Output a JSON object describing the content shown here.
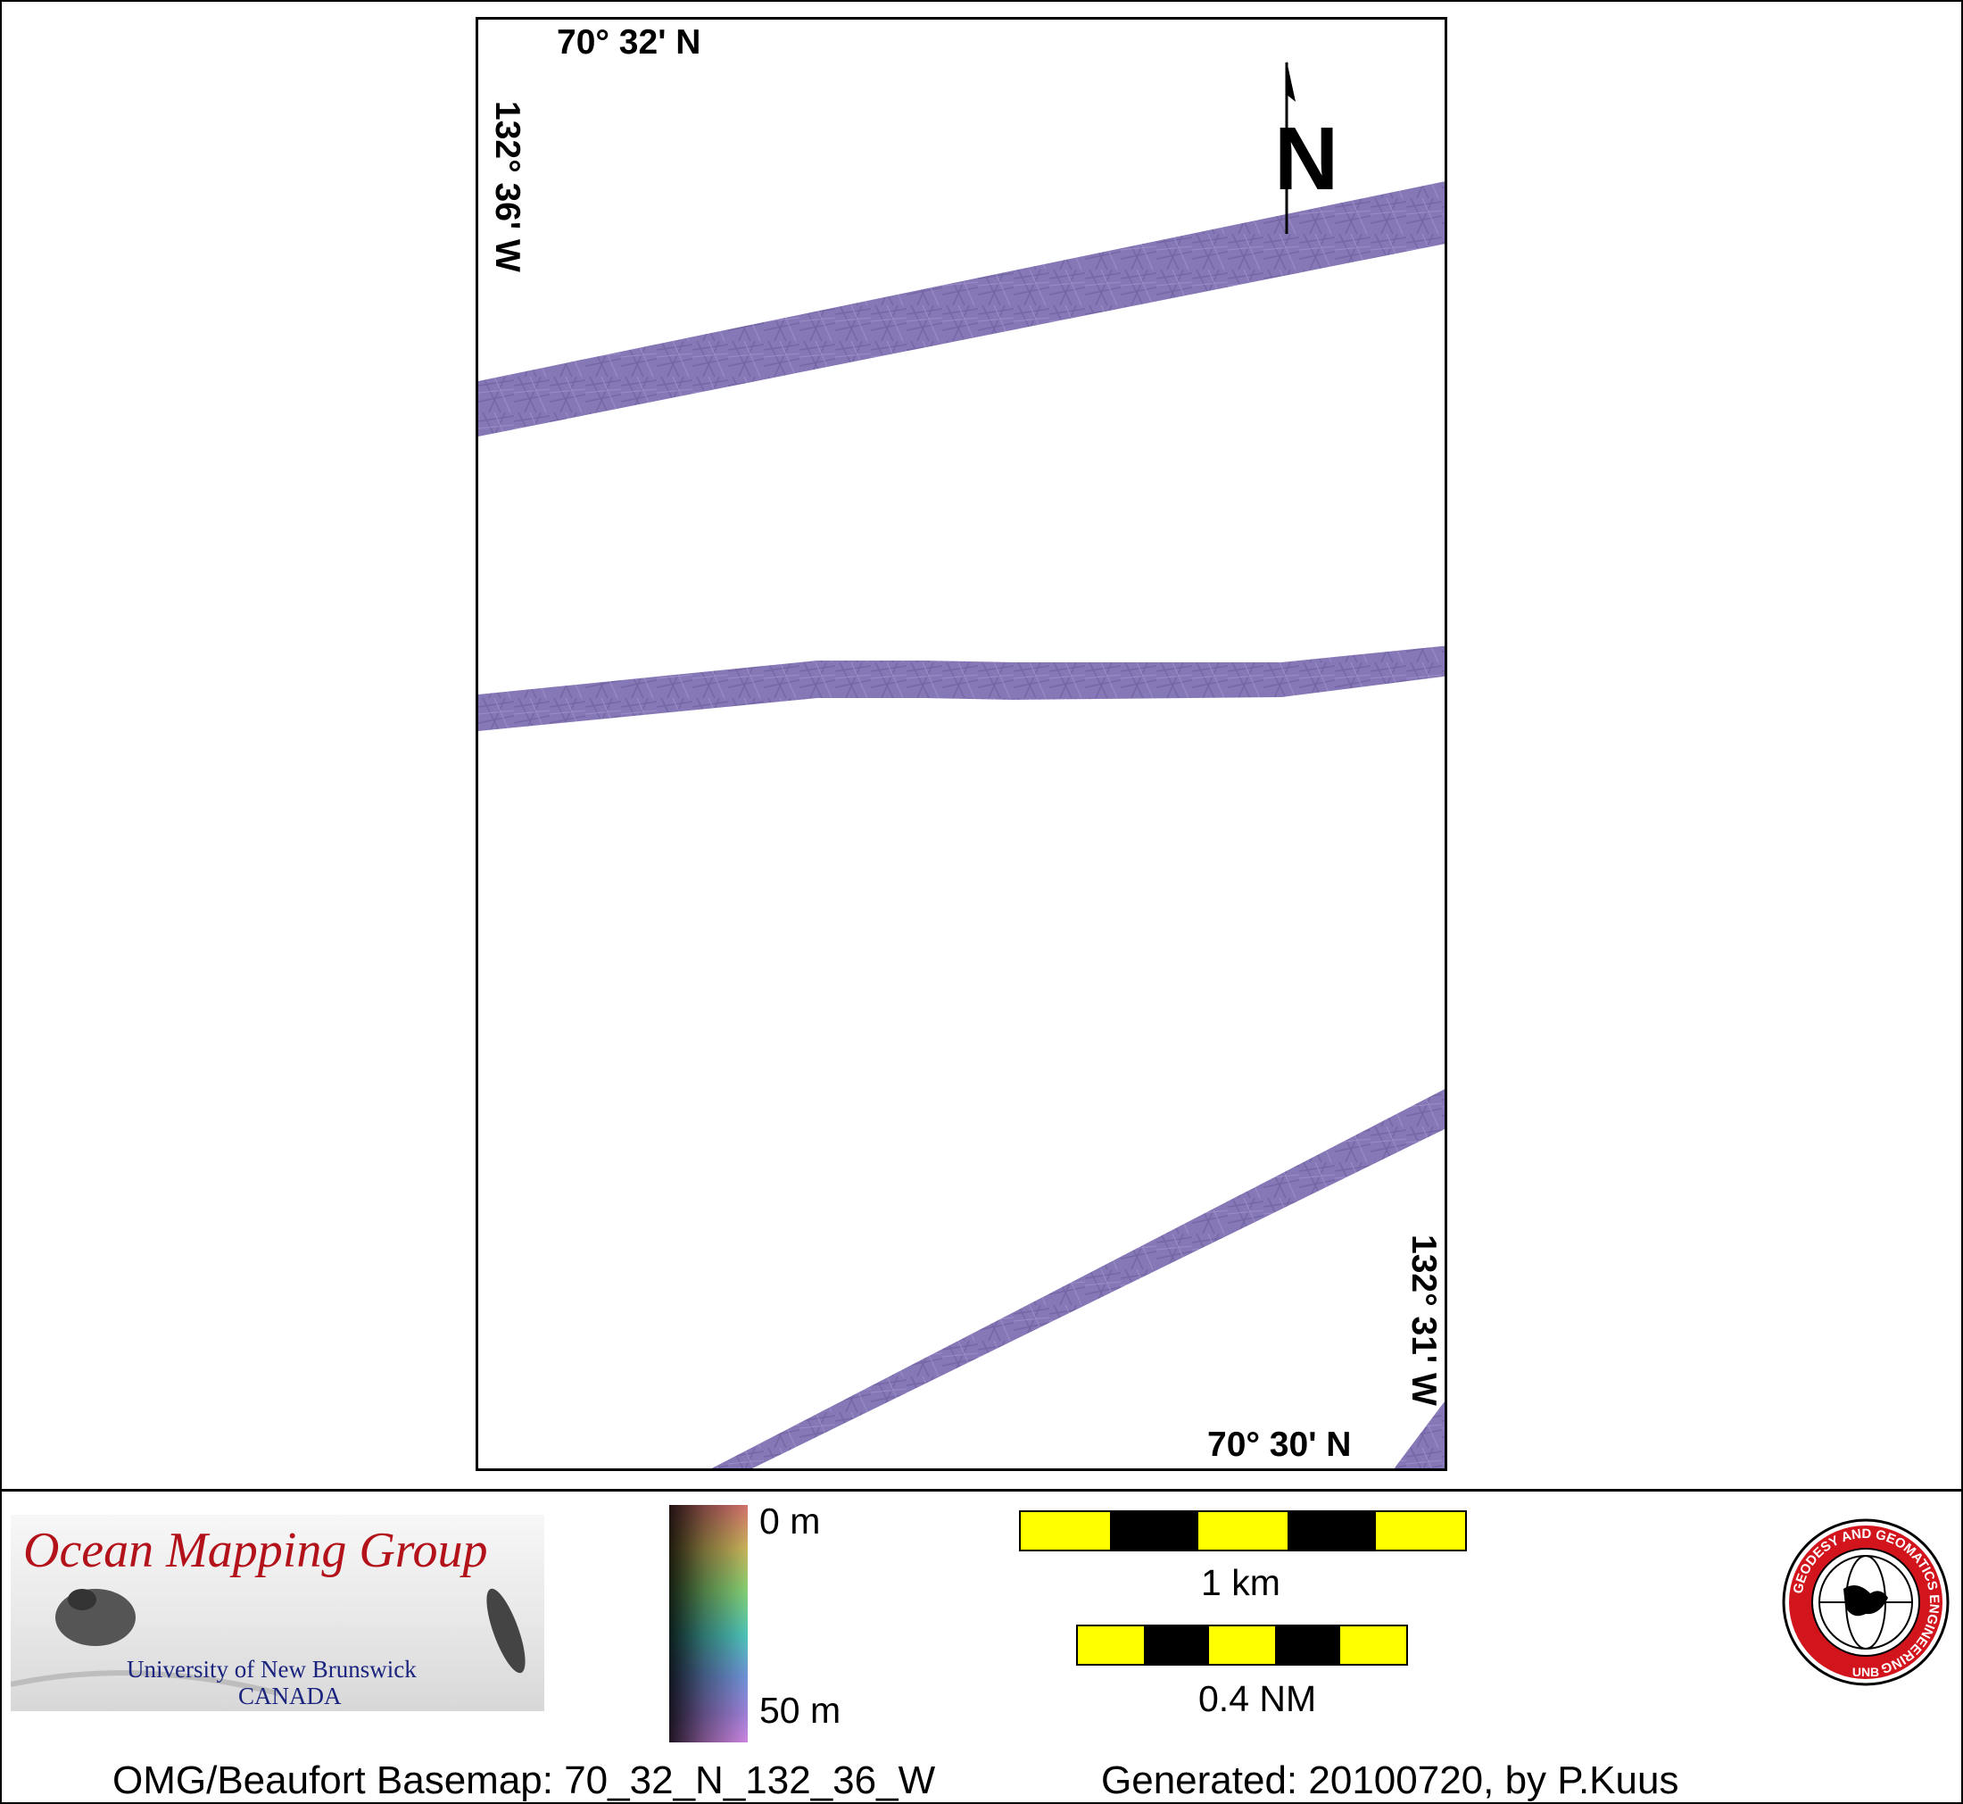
{
  "map": {
    "lat_top": "70° 32' N",
    "lon_left": "132° 36' W",
    "lat_bottom": "70° 30' N",
    "lon_right": "132° 31' W",
    "north_label": "N",
    "swath_color": "#8677b6"
  },
  "logo": {
    "title": "Ocean Mapping Group",
    "university": "University of New Brunswick",
    "country": "CANADA"
  },
  "colorbar": {
    "min_label": "0 m",
    "max_label": "50 m"
  },
  "scale_bars": [
    {
      "label": "1 km"
    },
    {
      "label": "0.4 NM"
    }
  ],
  "seal": {
    "ring_text": "GEODESY AND GEOMATICS ENGINEERING",
    "bottom_text": "UNB"
  },
  "footer": {
    "basemap": "OMG/Beaufort Basemap: 70_32_N_132_36_W",
    "generated": "Generated: 20100720, by P.Kuus"
  }
}
